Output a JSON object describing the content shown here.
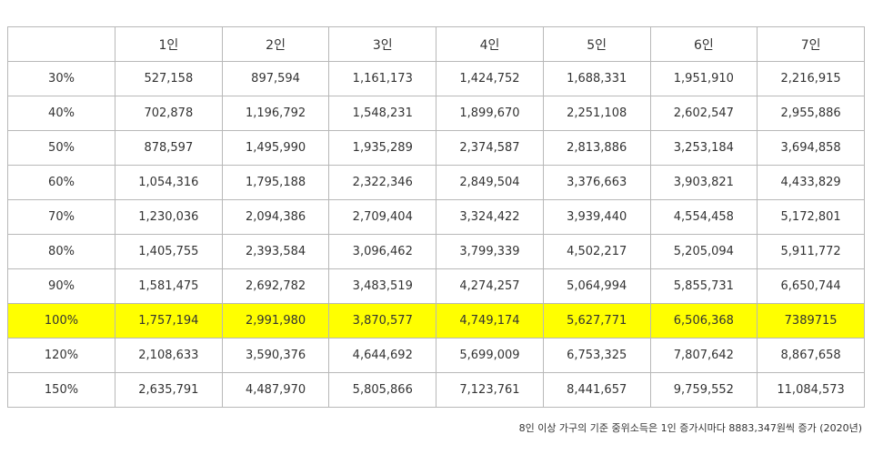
{
  "table": {
    "corner": "",
    "columns": [
      "1인",
      "2인",
      "3인",
      "4인",
      "5인",
      "6인",
      "7인"
    ],
    "rows": [
      {
        "label": "30%",
        "values": [
          "527,158",
          "897,594",
          "1,161,173",
          "1,424,752",
          "1,688,331",
          "1,951,910",
          "2,216,915"
        ],
        "highlight": false
      },
      {
        "label": "40%",
        "values": [
          "702,878",
          "1,196,792",
          "1,548,231",
          "1,899,670",
          "2,251,108",
          "2,602,547",
          "2,955,886"
        ],
        "highlight": false
      },
      {
        "label": "50%",
        "values": [
          "878,597",
          "1,495,990",
          "1,935,289",
          "2,374,587",
          "2,813,886",
          "3,253,184",
          "3,694,858"
        ],
        "highlight": false
      },
      {
        "label": "60%",
        "values": [
          "1,054,316",
          "1,795,188",
          "2,322,346",
          "2,849,504",
          "3,376,663",
          "3,903,821",
          "4,433,829"
        ],
        "highlight": false
      },
      {
        "label": "70%",
        "values": [
          "1,230,036",
          "2,094,386",
          "2,709,404",
          "3,324,422",
          "3,939,440",
          "4,554,458",
          "5,172,801"
        ],
        "highlight": false
      },
      {
        "label": "80%",
        "values": [
          "1,405,755",
          "2,393,584",
          "3,096,462",
          "3,799,339",
          "4,502,217",
          "5,205,094",
          "5,911,772"
        ],
        "highlight": false
      },
      {
        "label": "90%",
        "values": [
          "1,581,475",
          "2,692,782",
          "3,483,519",
          "4,274,257",
          "5,064,994",
          "5,855,731",
          "6,650,744"
        ],
        "highlight": false
      },
      {
        "label": "100%",
        "values": [
          "1,757,194",
          "2,991,980",
          "3,870,577",
          "4,749,174",
          "5,627,771",
          "6,506,368",
          "7389715"
        ],
        "highlight": true
      },
      {
        "label": "120%",
        "values": [
          "2,108,633",
          "3,590,376",
          "4,644,692",
          "5,699,009",
          "6,753,325",
          "7,807,642",
          "8,867,658"
        ],
        "highlight": false
      },
      {
        "label": "150%",
        "values": [
          "2,635,791",
          "4,487,970",
          "5,805,866",
          "7,123,761",
          "8,441,657",
          "9,759,552",
          "11,084,573"
        ],
        "highlight": false
      }
    ],
    "highlight_color": "#ffff00"
  },
  "footnote": "8인 이상 가구의 기준 중위소득은 1인 증가시마다 8883,347원씩 증가 (2020년)"
}
